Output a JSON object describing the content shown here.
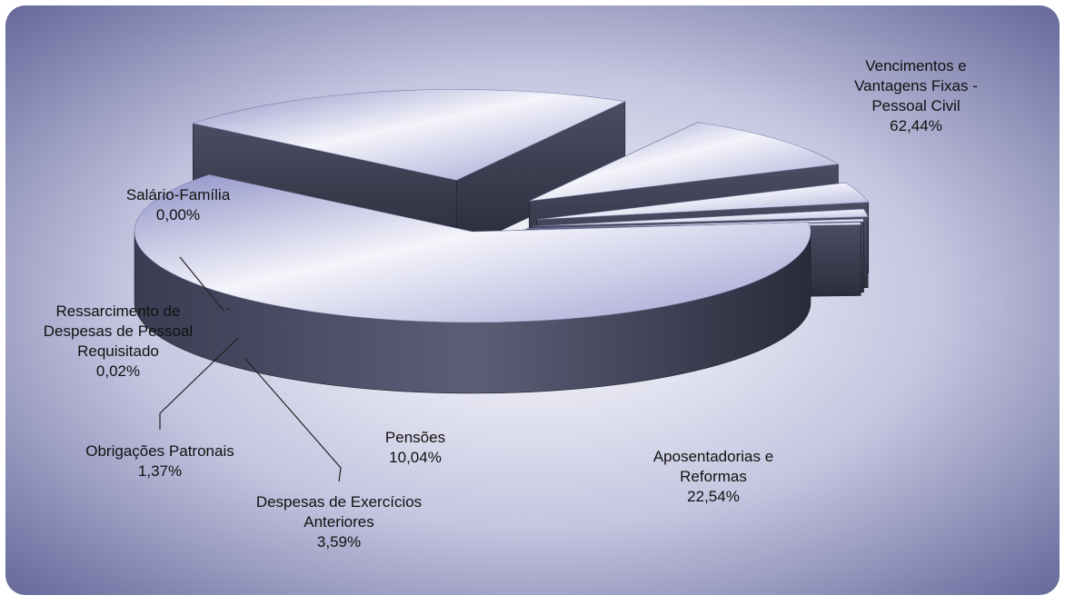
{
  "chart_data": {
    "type": "pie",
    "style": "3d-exploded",
    "title": "",
    "slices": [
      {
        "name": "Vencimentos e Vantagens Fixas - Pessoal Civil",
        "value_label": "62,44%",
        "value": 62.44,
        "label_lines": [
          "Vencimentos e",
          "Vantagens Fixas -",
          "Pessoal Civil",
          "62,44%"
        ]
      },
      {
        "name": "Aposentadorias e Reformas",
        "value_label": "22,54%",
        "value": 22.54,
        "label_lines": [
          "Aposentadorias e",
          "Reformas",
          "22,54%"
        ]
      },
      {
        "name": "Pensões",
        "value_label": "10,04%",
        "value": 10.04,
        "label_lines": [
          "Pensões",
          "10,04%"
        ]
      },
      {
        "name": "Despesas de Exercícios Anteriores",
        "value_label": "3,59%",
        "value": 3.59,
        "label_lines": [
          "Despesas de Exercícios",
          "Anteriores",
          "3,59%"
        ]
      },
      {
        "name": "Obrigações Patronais",
        "value_label": "1,37%",
        "value": 1.37,
        "label_lines": [
          "Obrigações Patronais",
          "1,37%"
        ]
      },
      {
        "name": "Ressarcimento de Despesas de Pessoal Requisitado",
        "value_label": "0,02%",
        "value": 0.02,
        "label_lines": [
          "Ressarcimento de",
          "Despesas de Pessoal",
          "Requisitado",
          "0,02%"
        ]
      },
      {
        "name": "Salário-Família",
        "value_label": "0,00%",
        "value": 0.0,
        "label_lines": [
          "Salário-Família",
          "0,00%"
        ]
      }
    ]
  }
}
